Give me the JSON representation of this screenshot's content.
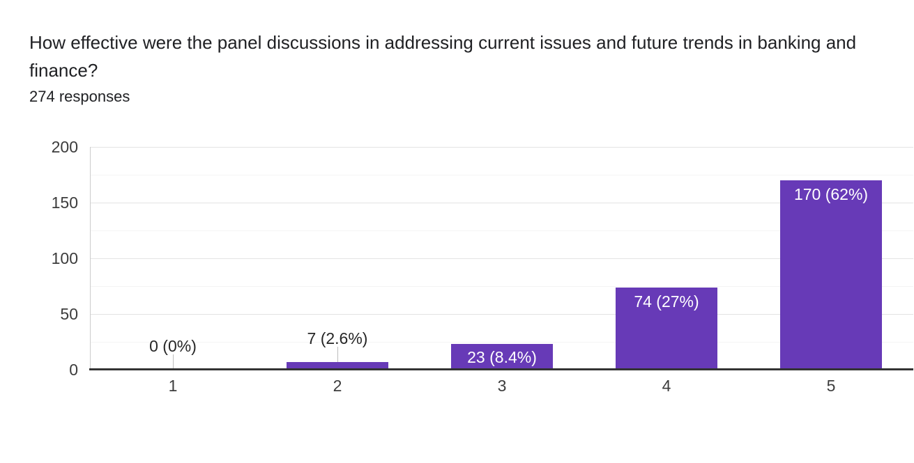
{
  "header": {
    "question": "How effective were the panel discussions in addressing current issues and future trends in banking and finance?",
    "responses": "274 responses"
  },
  "chart_data": {
    "type": "bar",
    "title": "How effective were the panel discussions in addressing current issues and future trends in banking and finance?",
    "subtitle": "274 responses",
    "categories": [
      "1",
      "2",
      "3",
      "4",
      "5"
    ],
    "values": [
      0,
      7,
      23,
      74,
      170
    ],
    "bar_labels": [
      "0 (0%)",
      "7 (2.6%)",
      "23 (8.4%)",
      "74 (27%)",
      "170 (62%)"
    ],
    "xlabel": "",
    "ylabel": "",
    "ylim": [
      0,
      200
    ],
    "yticks": [
      0,
      50,
      100,
      150,
      200
    ],
    "minor_grid_step": 25,
    "grid": "on",
    "legend": "none",
    "colors": {
      "bar": "#673ab7",
      "bar_label_inside": "#ffffff",
      "bar_label_outside": "#262626",
      "axis_text": "#3c3c3c",
      "baseline": "#333333",
      "major_grid": "#e3e3e3",
      "minor_grid": "#f4f4f4",
      "leader_line": "#bdbdbd",
      "plot_left_border": "#cccccc",
      "background": "#ffffff",
      "title_text": "#202124"
    }
  }
}
